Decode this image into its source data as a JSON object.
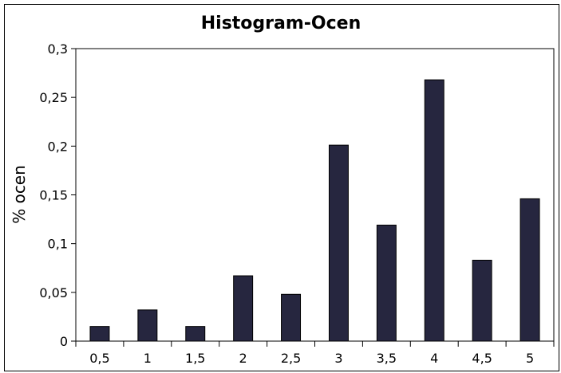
{
  "chart_data": {
    "type": "bar",
    "title": "Histogram-Ocen",
    "xlabel": "",
    "ylabel": "% ocen",
    "categories": [
      "0,5",
      "1",
      "1,5",
      "2",
      "2,5",
      "3",
      "3,5",
      "4",
      "4,5",
      "5"
    ],
    "values": [
      0.015,
      0.032,
      0.015,
      0.067,
      0.048,
      0.201,
      0.119,
      0.268,
      0.083,
      0.146
    ],
    "ylim": [
      0,
      0.3
    ],
    "yticks": [
      0,
      0.05,
      0.1,
      0.15,
      0.2,
      0.25,
      0.3
    ],
    "ytick_labels": [
      "0",
      "0,05",
      "0,1",
      "0,15",
      "0,2",
      "0,25",
      "0,3"
    ],
    "grid": false,
    "legend": "none",
    "bar_color": "#26263f"
  }
}
